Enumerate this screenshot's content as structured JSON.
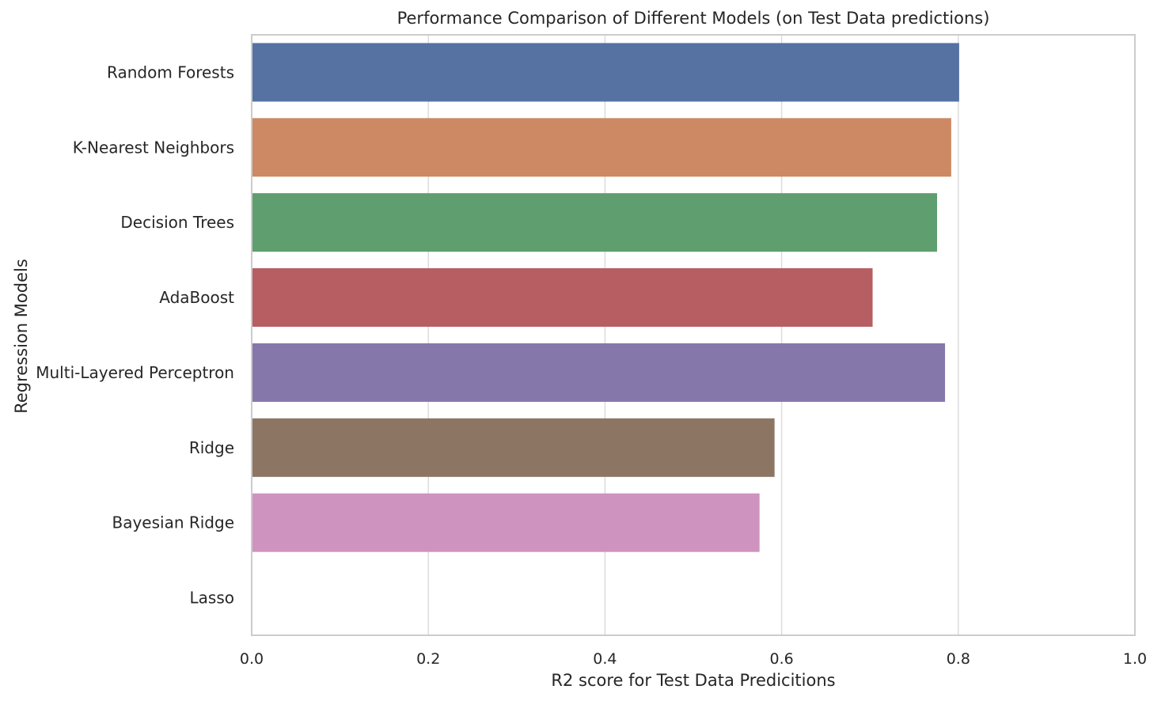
{
  "chart_data": {
    "type": "bar",
    "orientation": "horizontal",
    "title": "Performance Comparison of Different Models (on Test Data predictions)",
    "xlabel": "R2 score for Test Data Predicitions",
    "ylabel": "Regression Models",
    "categories": [
      "Random Forests",
      "K-Nearest Neighbors",
      "Decision Trees",
      "AdaBoost",
      "Multi-Layered Perceptron",
      "Ridge",
      "Bayesian Ridge",
      "Lasso"
    ],
    "values": [
      0.801,
      0.792,
      0.776,
      0.703,
      0.785,
      0.592,
      0.575,
      0.0
    ],
    "colors": [
      "#5572a3",
      "#cc8963",
      "#5f9e6e",
      "#b65e61",
      "#8677ab",
      "#8c7663",
      "#cf93bf",
      "#8c8c8c"
    ],
    "xlim": [
      0.0,
      1.0
    ],
    "xticks": [
      "0.0",
      "0.2",
      "0.4",
      "0.6",
      "0.8",
      "1.0"
    ],
    "grid": true,
    "grid_axis": "x"
  }
}
